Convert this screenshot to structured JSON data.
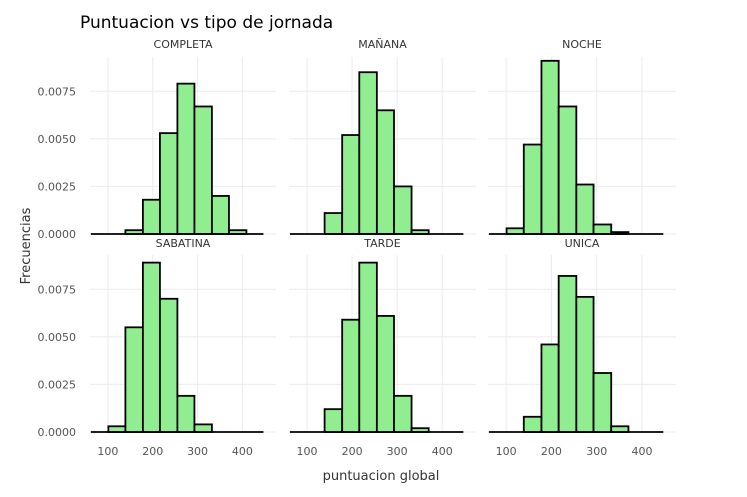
{
  "chart_data": {
    "type": "bar",
    "title": "Puntuacion vs tipo de jornada",
    "xlabel": "puntuacion global",
    "ylabel": "Frecuencias",
    "bar_color": "#90EE90",
    "edge_color": "#000000",
    "grid": true,
    "x_ticks": [
      100,
      200,
      300,
      400
    ],
    "xlim": [
      60,
      475
    ],
    "y_ticks": [
      0,
      0.0025,
      0.005,
      0.0075
    ],
    "y_tick_labels": [
      "0.0000",
      "0.0025",
      "0.0050",
      "0.0075"
    ],
    "ylim": [
      0,
      0.0093
    ],
    "bin_edges": [
      62,
      101,
      139,
      178,
      216,
      255,
      293,
      332,
      370,
      409,
      447
    ],
    "facets": [
      {
        "name": "COMPLETA",
        "values": [
          0.0,
          0.0,
          0.0002,
          0.0018,
          0.0053,
          0.0079,
          0.0067,
          0.002,
          0.0002,
          0.0
        ]
      },
      {
        "name": "MAÑANA",
        "values": [
          0.0,
          0.0,
          0.0011,
          0.0052,
          0.0085,
          0.0065,
          0.0025,
          0.0002,
          0.0,
          0.0
        ]
      },
      {
        "name": "NOCHE",
        "values": [
          0.0,
          0.0003,
          0.0047,
          0.0091,
          0.0067,
          0.0026,
          0.0005,
          0.0001,
          0.0,
          0.0
        ]
      },
      {
        "name": "SABATINA",
        "values": [
          0.0,
          0.0003,
          0.0055,
          0.0089,
          0.007,
          0.0019,
          0.0004,
          0.0,
          0.0,
          0.0
        ]
      },
      {
        "name": "TARDE",
        "values": [
          0.0,
          0.0,
          0.0012,
          0.0059,
          0.0089,
          0.0061,
          0.0019,
          0.0002,
          0.0,
          0.0
        ]
      },
      {
        "name": "UNICA",
        "values": [
          0.0,
          0.0,
          0.0008,
          0.0046,
          0.0082,
          0.0071,
          0.0031,
          0.0003,
          0.0,
          0.0
        ]
      }
    ]
  }
}
